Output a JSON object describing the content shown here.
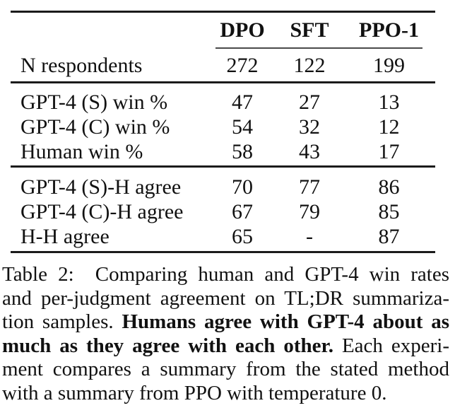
{
  "table": {
    "column_headers": [
      "DPO",
      "SFT",
      "PPO-1"
    ],
    "rows": [
      {
        "label": "N respondents",
        "values": [
          "272",
          "122",
          "199"
        ]
      },
      {
        "label": "GPT-4 (S) win %",
        "values": [
          "47",
          "27",
          "13"
        ]
      },
      {
        "label": "GPT-4 (C) win %",
        "values": [
          "54",
          "32",
          "12"
        ]
      },
      {
        "label": "Human win %",
        "values": [
          "58",
          "43",
          "17"
        ]
      },
      {
        "label": "GPT-4 (S)-H agree",
        "values": [
          "70",
          "77",
          "86"
        ]
      },
      {
        "label": "GPT-4 (C)-H agree",
        "values": [
          "67",
          "79",
          "85"
        ]
      },
      {
        "label": "H-H agree",
        "values": [
          "65",
          "-",
          "87"
        ]
      }
    ]
  },
  "caption": {
    "full_text": "Table 2: Comparing human and GPT-4 win rates and per-judgment agreement on TL;DR summarization samples. Humans agree with GPT-4 about as much as they agree with each other. Each experiment compares a summary from the stated method with a summary from PPO with temperature 0.",
    "lines": [
      {
        "normal": "Table 2:  Comparing human and GPT-4 win rates"
      },
      {
        "normal": "and per-judgment agreement on TL;DR summariza-"
      },
      {
        "normal": "tion samples. ",
        "bold": "Humans agree with GPT-4 about as"
      },
      {
        "bold": "much as they agree with each other.",
        "normal": " Each experi-"
      },
      {
        "normal": "ment compares a summary from the stated method"
      },
      {
        "normal": "with a summary from PPO with temperature 0."
      }
    ]
  },
  "colors": {
    "text": "#111111",
    "background": "#ffffff",
    "rule": "#1b1b1b",
    "cmidrule": "#4a4a4a"
  }
}
